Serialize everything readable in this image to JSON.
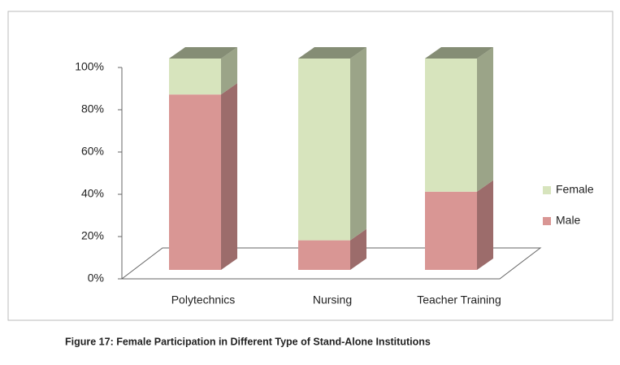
{
  "chart_data": {
    "type": "stacked_bar_3d",
    "caption": "Figure 17: Female Participation in Different Type of Stand-Alone Institutions",
    "categories": [
      "Polytechnics",
      "Nursing",
      "Teacher Training"
    ],
    "series": [
      {
        "name": "Male",
        "color": "#d99694",
        "values": [
          83,
          14,
          37
        ]
      },
      {
        "name": "Female",
        "color": "#d7e4bd",
        "values": [
          17,
          86,
          63
        ]
      }
    ],
    "ylim": [
      0,
      100
    ],
    "yticks": [
      {
        "value": 0,
        "label": "0%"
      },
      {
        "value": 20,
        "label": "20%"
      },
      {
        "value": 40,
        "label": "40%"
      },
      {
        "value": 60,
        "label": "60%"
      },
      {
        "value": 80,
        "label": "80%"
      },
      {
        "value": 100,
        "label": "100%"
      }
    ],
    "legend": "right"
  }
}
